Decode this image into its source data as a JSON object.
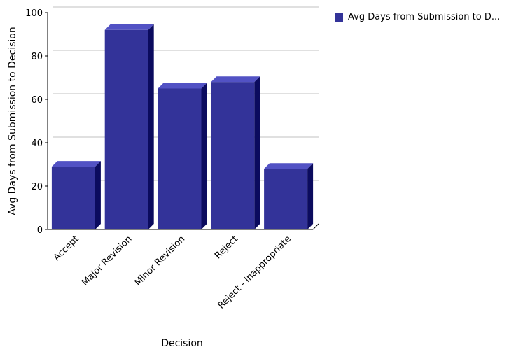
{
  "chart_data": {
    "type": "bar",
    "title": "",
    "xlabel": "Decision",
    "ylabel": "Avg Days from Submission to Decision",
    "categories": [
      "Accept",
      "Major Revision",
      "Minor Revision",
      "Reject",
      "Reject - Inappropriate"
    ],
    "series": [
      {
        "name": "Avg Days from Submission to D...",
        "values": [
          29,
          92,
          65,
          68,
          28
        ]
      }
    ],
    "ylim": [
      0,
      100
    ],
    "yticks": [
      0,
      20,
      40,
      60,
      80,
      100
    ],
    "grid": true,
    "legend_position": "top-right",
    "colors": {
      "bar_front": "#333399",
      "bar_top": "#5252c4",
      "bar_side": "#0b0b5e",
      "grid": "#c0c0c0"
    }
  }
}
